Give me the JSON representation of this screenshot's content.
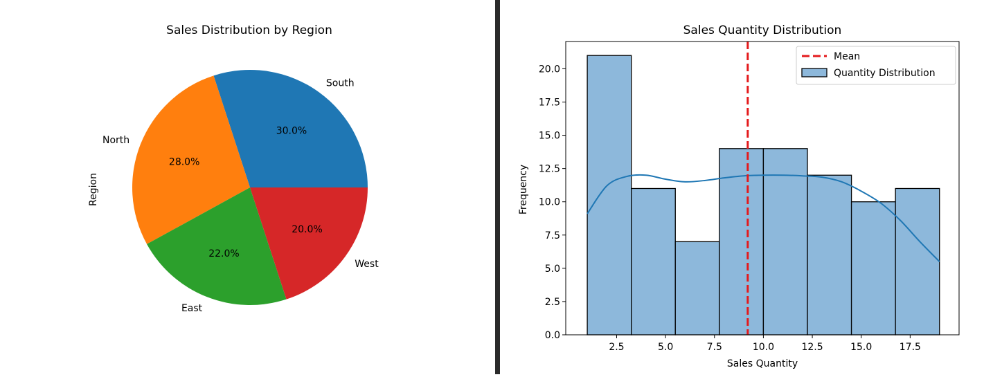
{
  "chart_data": [
    {
      "type": "pie",
      "title": "Sales Distribution by Region",
      "ylabel": "Region",
      "categories": [
        "South",
        "North",
        "East",
        "West"
      ],
      "values": [
        30.0,
        28.0,
        22.0,
        20.0
      ],
      "pct_labels": [
        "30.0%",
        "28.0%",
        "22.0%",
        "20.0%"
      ],
      "colors": [
        "#1f77b4",
        "#ff7f0e",
        "#2ca02c",
        "#d62728"
      ],
      "start_angle_deg": 0,
      "direction": "counterclockwise"
    },
    {
      "type": "bar",
      "subtype": "histogram_with_kde",
      "title": "Sales Quantity Distribution",
      "xlabel": "Sales Quantity",
      "ylabel": "Frequency",
      "xlim": [
        -0.1,
        20.0
      ],
      "ylim": [
        0,
        22.05
      ],
      "xticks": [
        2.5,
        5.0,
        7.5,
        10.0,
        12.5,
        15.0,
        17.5
      ],
      "xtick_labels": [
        "2.5",
        "5.0",
        "7.5",
        "10.0",
        "12.5",
        "15.0",
        "17.5"
      ],
      "yticks": [
        0.0,
        2.5,
        5.0,
        7.5,
        10.0,
        12.5,
        15.0,
        17.5,
        20.0
      ],
      "ytick_labels": [
        "0.0",
        "2.5",
        "5.0",
        "7.5",
        "10.0",
        "12.5",
        "15.0",
        "17.5",
        "20.0"
      ],
      "bin_edges": [
        1.0,
        3.25,
        5.5,
        7.75,
        10.0,
        12.25,
        14.5,
        16.75,
        19.0
      ],
      "counts": [
        21,
        11,
        7,
        14,
        14,
        12,
        10,
        11
      ],
      "bar_color": "#8db8db",
      "bar_edge_color": "#000000",
      "kde": {
        "x": [
          1.0,
          2.0,
          3.0,
          4.0,
          5.0,
          6.0,
          7.0,
          8.0,
          9.0,
          10.0,
          11.0,
          12.0,
          13.0,
          14.0,
          15.0,
          16.0,
          17.0,
          18.0,
          19.0
        ],
        "y": [
          9.1,
          11.2,
          11.9,
          12.0,
          11.7,
          11.5,
          11.6,
          11.8,
          11.95,
          12.0,
          12.0,
          11.95,
          11.85,
          11.5,
          10.8,
          9.9,
          8.6,
          7.0,
          5.5
        ],
        "color": "#1f77b4"
      },
      "mean": {
        "value": 9.2,
        "color": "#e41a1c",
        "label": "Mean"
      },
      "legend": {
        "position": "upper right",
        "entries": [
          {
            "label": "Mean",
            "kind": "dashed-line",
            "color": "#e41a1c"
          },
          {
            "label": "Quantity Distribution",
            "kind": "patch",
            "color": "#8db8db"
          }
        ]
      }
    }
  ]
}
